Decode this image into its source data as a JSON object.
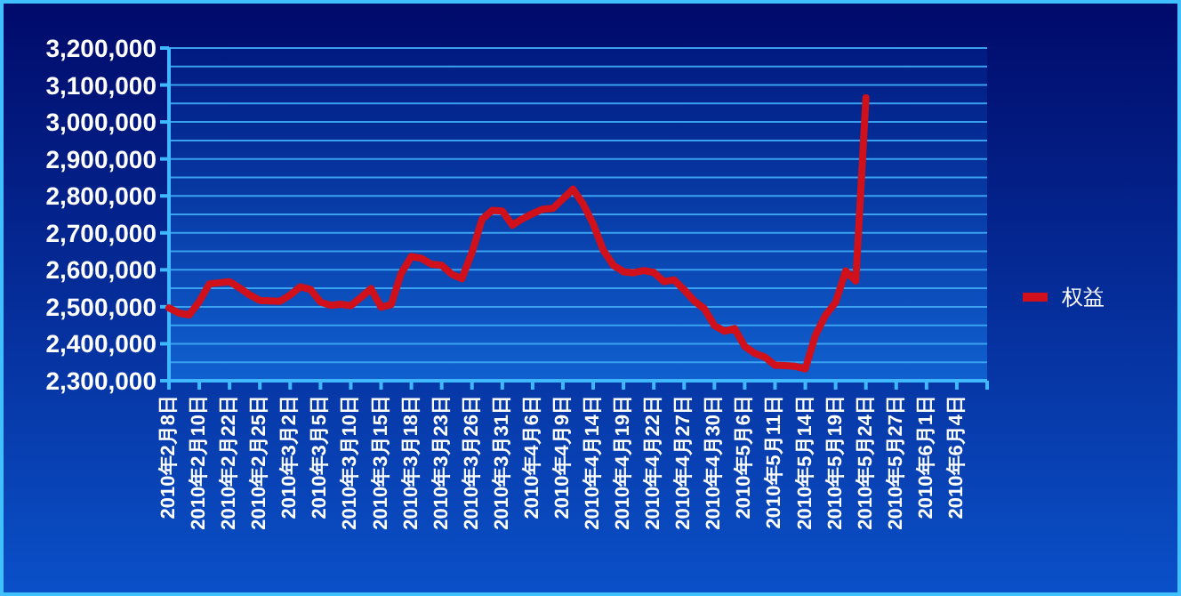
{
  "chart_data": {
    "type": "line",
    "grid": "y",
    "legend": "right",
    "line_style": "solid",
    "categories": [
      "2010年2月8日",
      null,
      null,
      "2010年2月10日",
      null,
      null,
      "2010年2月22日",
      null,
      null,
      "2010年2月25日",
      null,
      null,
      "2010年3月2日",
      null,
      null,
      "2010年3月5日",
      null,
      null,
      "2010年3月10日",
      null,
      null,
      "2010年3月15日",
      null,
      null,
      "2010年3月18日",
      null,
      null,
      "2010年3月23日",
      null,
      null,
      "2010年3月26日",
      null,
      null,
      "2010年3月31日",
      null,
      null,
      "2010年4月6日",
      null,
      null,
      "2010年4月9日",
      null,
      null,
      "2010年4月14日",
      null,
      null,
      "2010年4月19日",
      null,
      null,
      "2010年4月22日",
      null,
      null,
      "2010年4月27日",
      null,
      null,
      "2010年4月30日",
      null,
      null,
      "2010年5月6日",
      null,
      null,
      "2010年5月11日",
      null,
      null,
      "2010年5月14日",
      null,
      null,
      "2010年5月19日",
      null,
      null,
      "2010年5月24日",
      null,
      null,
      "2010年5月27日",
      null,
      null,
      "2010年6月1日",
      null,
      null,
      "2010年6月4日",
      null,
      null
    ],
    "ylim": [
      2300000,
      3200000
    ],
    "yticks": [
      {
        "value": 2300000,
        "label": "2,300,000"
      },
      {
        "value": 2350000,
        "label": null
      },
      {
        "value": 2400000,
        "label": "2,400,000"
      },
      {
        "value": 2450000,
        "label": null
      },
      {
        "value": 2500000,
        "label": "2,500,000"
      },
      {
        "value": 2550000,
        "label": null
      },
      {
        "value": 2600000,
        "label": "2,600,000"
      },
      {
        "value": 2650000,
        "label": null
      },
      {
        "value": 2700000,
        "label": "2,700,000"
      },
      {
        "value": 2750000,
        "label": null
      },
      {
        "value": 2800000,
        "label": "2,800,000"
      },
      {
        "value": 2850000,
        "label": null
      },
      {
        "value": 2900000,
        "label": "2,900,000"
      },
      {
        "value": 2950000,
        "label": null
      },
      {
        "value": 3000000,
        "label": "3,000,000"
      },
      {
        "value": 3050000,
        "label": null
      },
      {
        "value": 3100000,
        "label": "3,100,000"
      },
      {
        "value": 3150000,
        "label": null
      },
      {
        "value": 3200000,
        "label": "3,200,000"
      }
    ],
    "series": [
      {
        "name": "权益",
        "color": "#d0101a",
        "values": [
          2497000,
          2483000,
          2478000,
          2514000,
          2562000,
          2565000,
          2568000,
          2551000,
          2532000,
          2517000,
          2516000,
          2515000,
          2532000,
          2554000,
          2547000,
          2513000,
          2504000,
          2507000,
          2503000,
          2525000,
          2549000,
          2499000,
          2506000,
          2591000,
          2636000,
          2631000,
          2615000,
          2612000,
          2588000,
          2576000,
          2647000,
          2737000,
          2761000,
          2759000,
          2721000,
          2738000,
          2752000,
          2764000,
          2766000,
          2792000,
          2818000,
          2778000,
          2724000,
          2653000,
          2612000,
          2595000,
          2592000,
          2598000,
          2593000,
          2568000,
          2573000,
          2546000,
          2516000,
          2495000,
          2449000,
          2434000,
          2441000,
          2393000,
          2374000,
          2364000,
          2342000,
          2341000,
          2339000,
          2332000,
          2423000,
          2477000,
          2512000,
          2597000,
          2570000,
          3065000,
          null,
          null,
          null,
          null,
          null,
          null,
          null,
          null,
          null,
          null,
          null
        ]
      }
    ]
  }
}
